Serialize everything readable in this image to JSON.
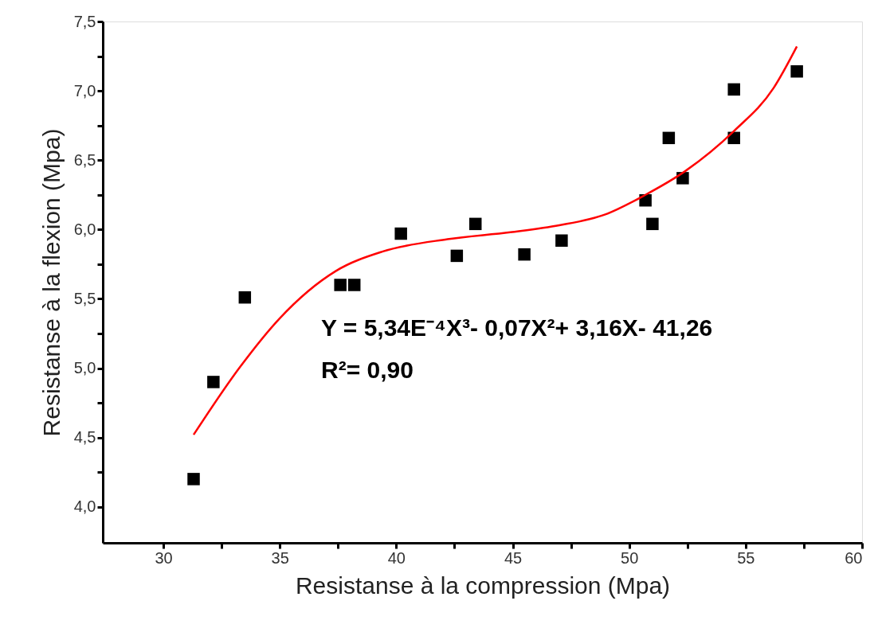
{
  "chart_data": {
    "type": "scatter",
    "xlabel": "Resistanse à la compression (Mpa)",
    "ylabel": "Resistanse à la flexion (Mpa)",
    "xlim": [
      27.4,
      60
    ],
    "ylim": [
      3.74,
      7.5
    ],
    "xticks": [
      30,
      {
        "value": 32.5,
        "label": null
      },
      35,
      {
        "value": 37.5,
        "label": null
      },
      40,
      {
        "value": 42.5,
        "label": null
      },
      45,
      {
        "value": 47.5,
        "label": null
      },
      50,
      {
        "value": 52.5,
        "label": null
      },
      55,
      {
        "value": 57.5,
        "label": null
      },
      60
    ],
    "yticks": [
      {
        "value": 4.0,
        "label": "4,0"
      },
      {
        "value": 4.25,
        "label": null
      },
      {
        "value": 4.5,
        "label": "4,5"
      },
      {
        "value": 4.75,
        "label": null
      },
      {
        "value": 5.0,
        "label": "5,0"
      },
      {
        "value": 5.25,
        "label": null
      },
      {
        "value": 5.5,
        "label": "5,5"
      },
      {
        "value": 5.75,
        "label": null
      },
      {
        "value": 6.0,
        "label": "6,0"
      },
      {
        "value": 6.25,
        "label": null
      },
      {
        "value": 6.5,
        "label": "6,5"
      },
      {
        "value": 6.75,
        "label": null
      },
      {
        "value": 7.0,
        "label": "7,0"
      },
      {
        "value": 7.25,
        "label": null
      },
      {
        "value": 7.5,
        "label": "7,5"
      }
    ],
    "grid": false,
    "annotations": [
      "Y = 5,34E⁻⁴X³- 0,07X²+ 3,16X- 41,26",
      "R²= 0,90"
    ],
    "series": [
      {
        "color": "#000000",
        "marker": "square",
        "x": [
          31.3,
          32.15,
          33.5,
          37.6,
          38.2,
          40.2,
          42.6,
          43.4,
          45.5,
          47.1,
          50.7,
          51.0,
          51.7,
          52.3,
          54.5,
          54.5,
          57.2
        ],
        "values": [
          4.2,
          4.9,
          5.51,
          5.6,
          5.6,
          5.97,
          5.81,
          6.04,
          5.82,
          5.92,
          6.21,
          6.04,
          6.66,
          6.37,
          7.01,
          6.66,
          7.14
        ]
      },
      {
        "type": "line",
        "color": "#ff0000",
        "marker": "none",
        "line_style": "solid",
        "x": [
          31.3,
          33.3,
          35.0,
          37.4,
          39.4,
          42.2,
          44.9,
          47.0,
          49.0,
          50.7,
          52.4,
          54.5,
          56.2,
          57.2
        ],
        "values": [
          4.52,
          5.01,
          5.36,
          5.7,
          5.84,
          5.93,
          5.98,
          6.03,
          6.11,
          6.25,
          6.42,
          6.71,
          7.02,
          7.32
        ]
      }
    ]
  }
}
